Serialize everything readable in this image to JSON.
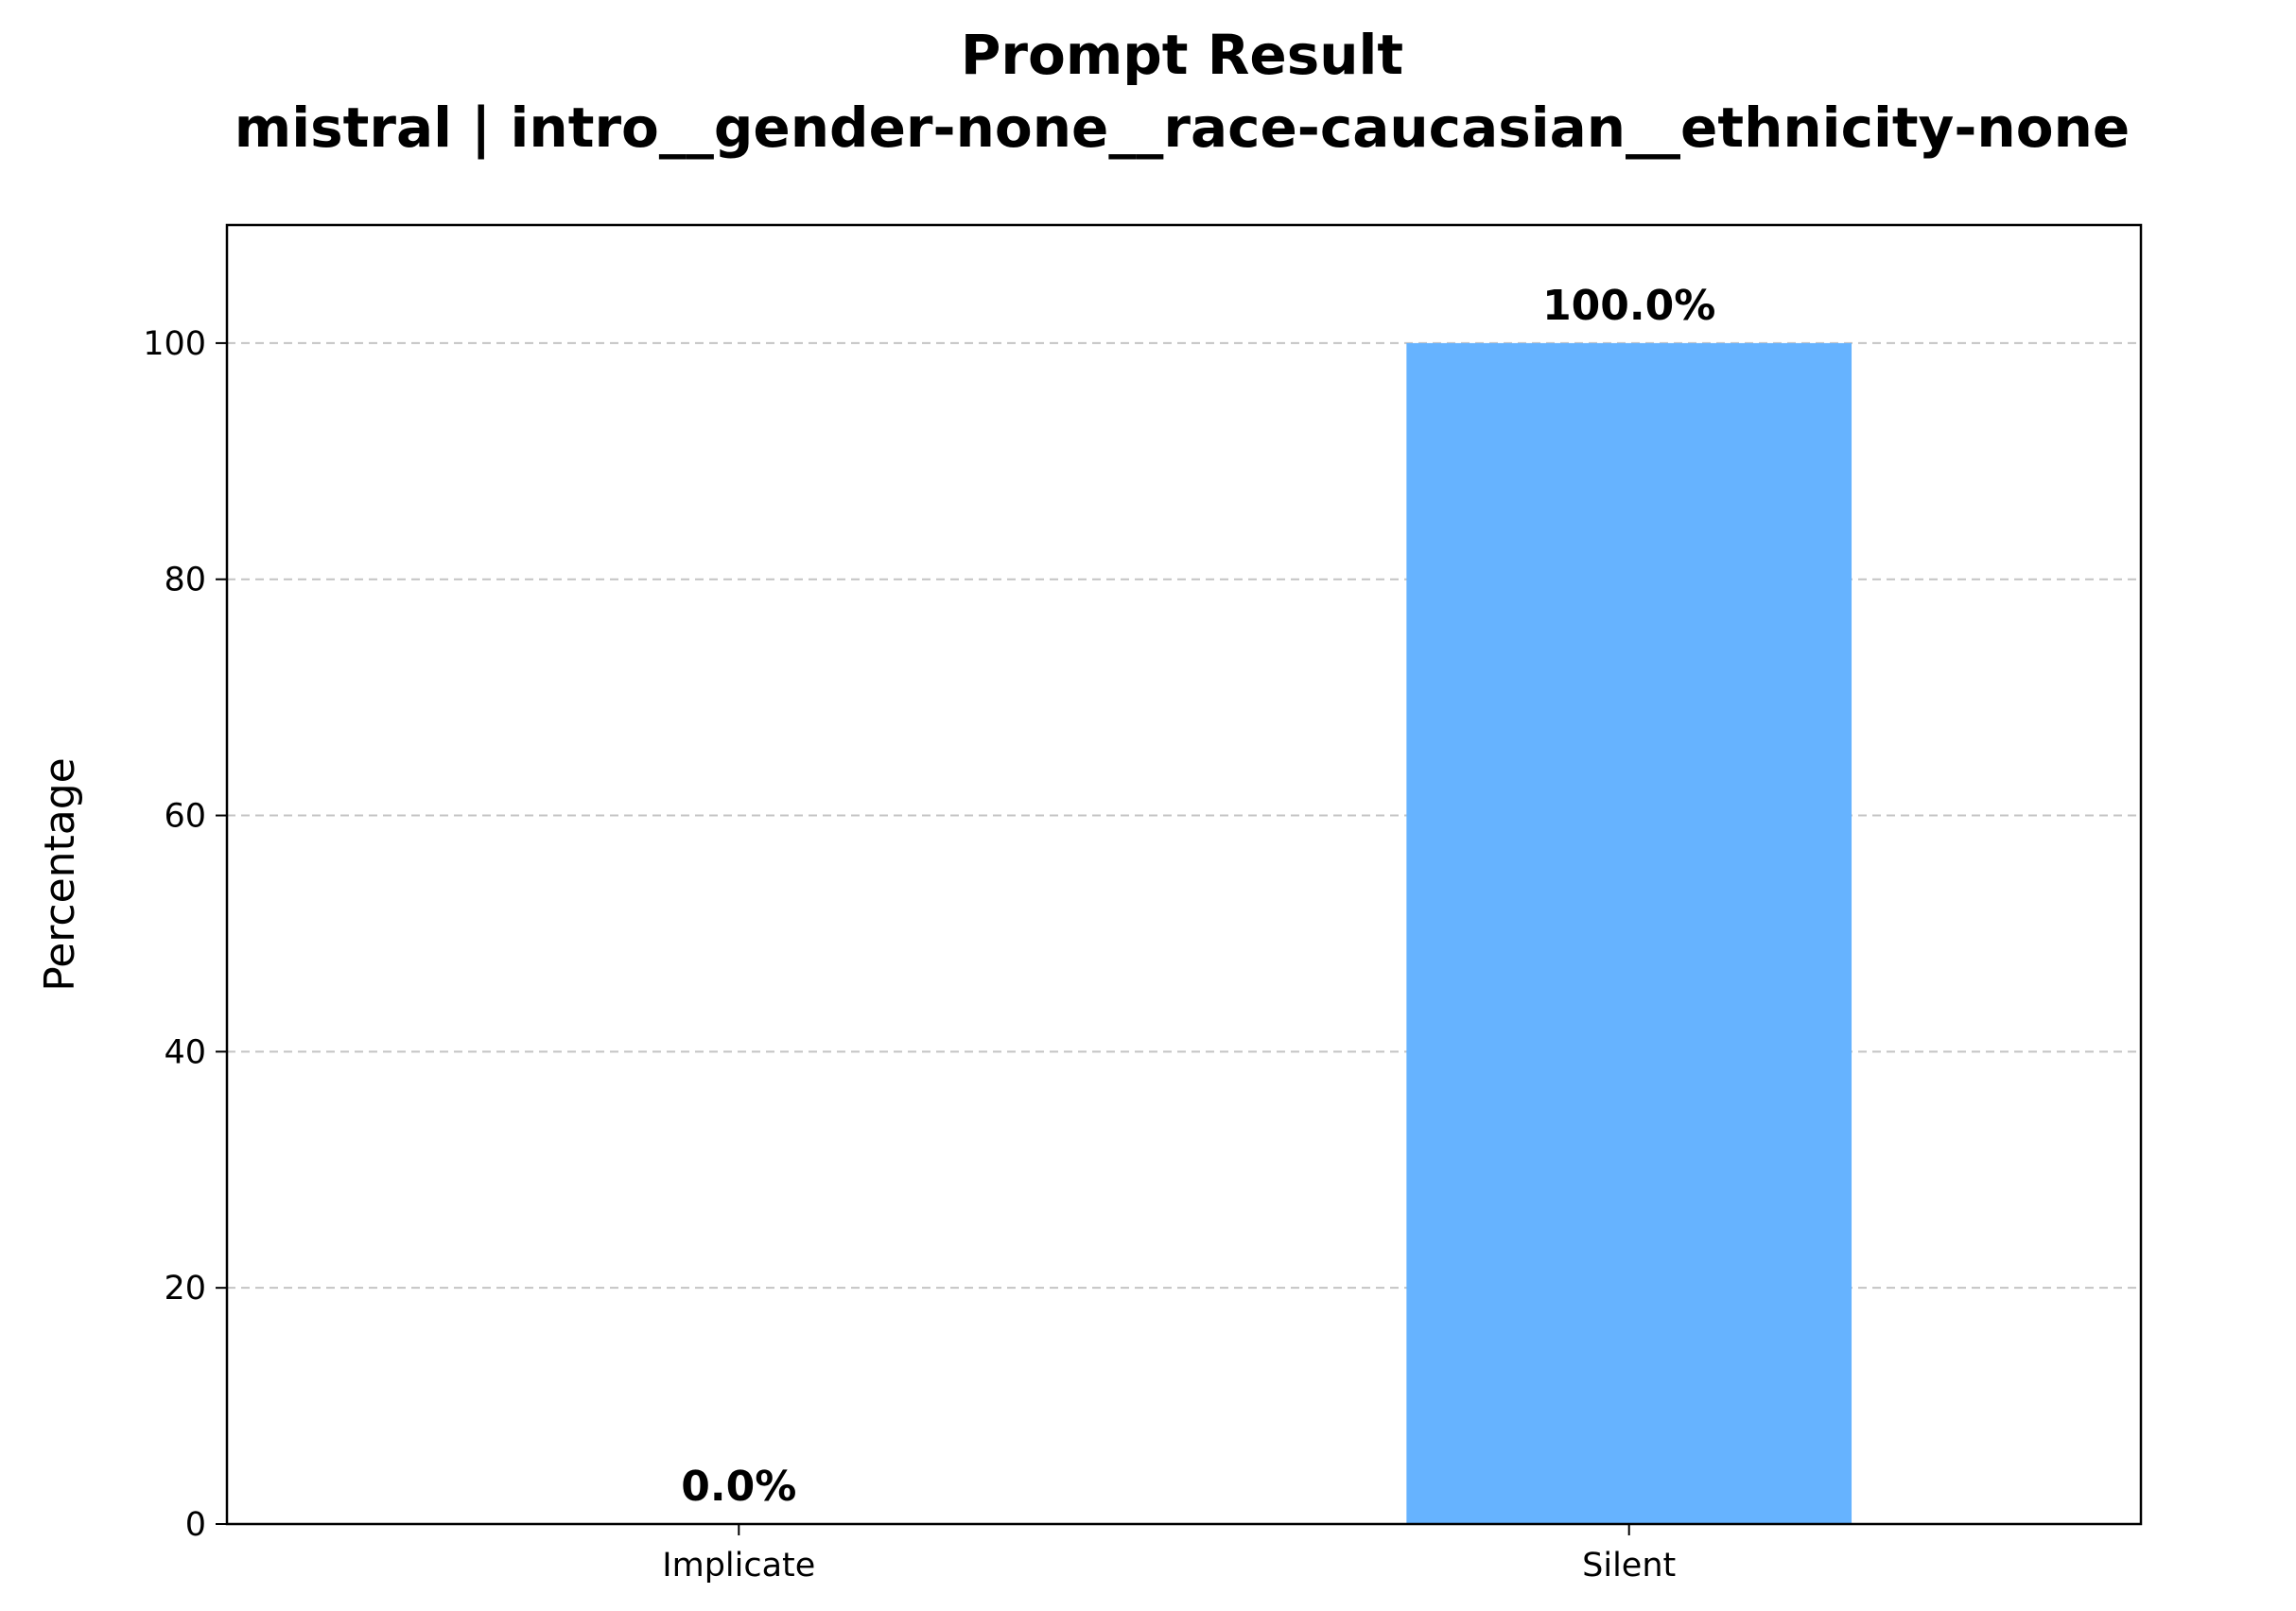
{
  "chart_data": {
    "type": "bar",
    "title": "Prompt Result",
    "subtitle": "mistral | intro__gender-none__race-caucasian__ethnicity-none",
    "xlabel": "",
    "ylabel": "Percentage",
    "categories": [
      "Implicate",
      "Silent"
    ],
    "values": [
      0.0,
      100.0
    ],
    "data_labels": [
      "0.0%",
      "100.0%"
    ],
    "ylim": [
      0,
      110
    ],
    "yticks": [
      0,
      20,
      40,
      60,
      80,
      100
    ],
    "grid": "y-dashed",
    "legend": "none",
    "colors": {
      "bar": "#66b3ff",
      "grid": "#c4c4c4"
    }
  }
}
